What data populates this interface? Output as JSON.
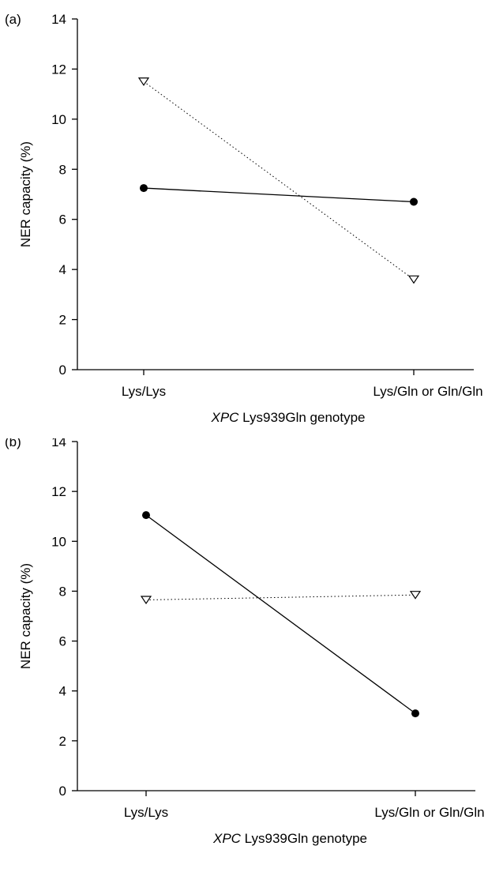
{
  "chart_data": [
    {
      "panel_label": "(a)",
      "type": "line",
      "categories": [
        "Lys/Lys",
        "Lys/Gln or Gln/Gln"
      ],
      "ylabel": "NER capacity (%)",
      "xlabel_italic": "XPC",
      "xlabel_rest": " Lys939Gln genotype",
      "ylim": [
        0,
        14
      ],
      "yticks": [
        0,
        2,
        4,
        6,
        8,
        10,
        12,
        14
      ],
      "grid": false,
      "legend": "none",
      "series": [
        {
          "values": [
            7.25,
            6.7
          ],
          "marker": "filled-circle",
          "line": "solid",
          "color": "#000000"
        },
        {
          "values": [
            11.5,
            3.6
          ],
          "marker": "open-triangle-down",
          "line": "dotted",
          "color": "#000000"
        }
      ]
    },
    {
      "panel_label": "(b)",
      "type": "line",
      "categories": [
        "Lys/Lys",
        "Lys/Gln or Gln/Gln"
      ],
      "ylabel": "NER capacity (%)",
      "xlabel_italic": "XPC",
      "xlabel_rest": " Lys939Gln genotype",
      "ylim": [
        0,
        14
      ],
      "yticks": [
        0,
        2,
        4,
        6,
        8,
        10,
        12,
        14
      ],
      "grid": false,
      "legend": "none",
      "series": [
        {
          "values": [
            11.05,
            3.1
          ],
          "marker": "filled-circle",
          "line": "solid",
          "color": "#000000"
        },
        {
          "values": [
            7.65,
            7.85
          ],
          "marker": "open-triangle-down",
          "line": "dotted",
          "color": "#000000"
        }
      ]
    }
  ]
}
